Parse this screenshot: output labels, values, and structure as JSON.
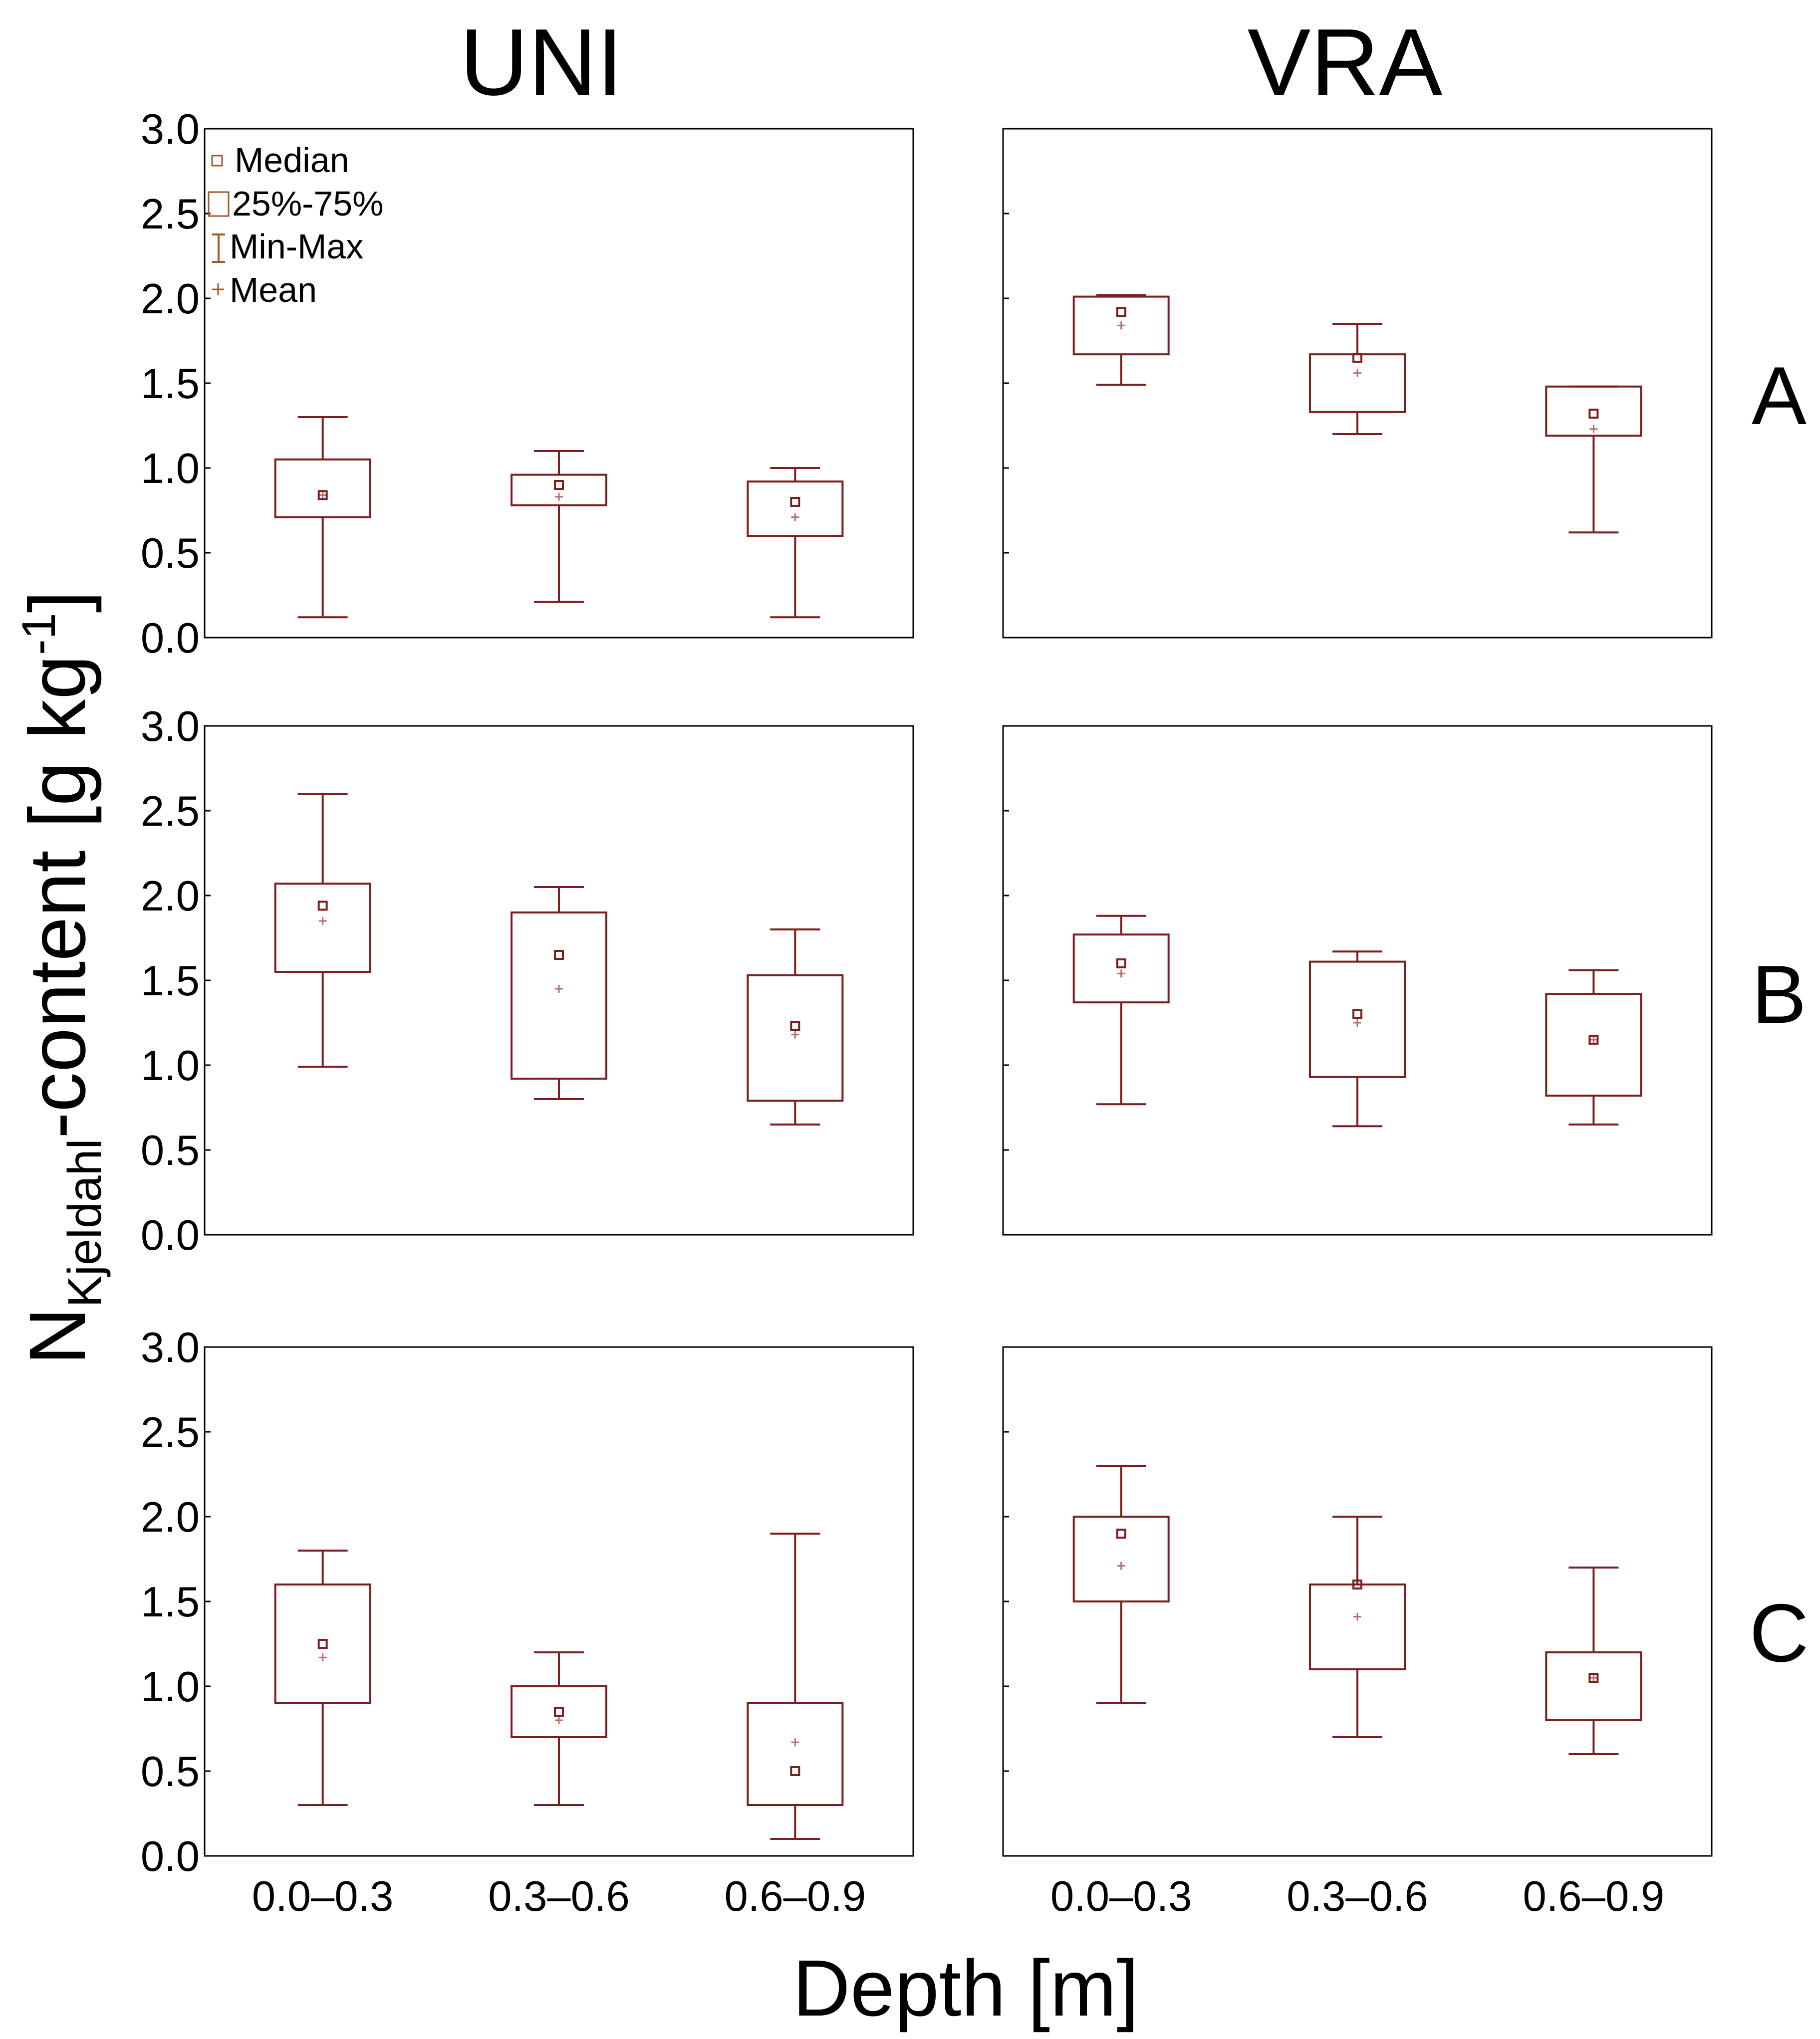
{
  "chart_data": {
    "type": "box",
    "column_titles": [
      "UNI",
      "VRA"
    ],
    "row_labels": [
      "A",
      "B",
      "C"
    ],
    "ylabel_main": "N",
    "ylabel_sub": "Kjeldahl",
    "ylabel_rest": "-content [g kg",
    "ylabel_sup": "-1",
    "ylabel_close": "]",
    "xlabel": "Depth [m]",
    "categories": [
      "0.0–0.3",
      "0.3–0.6",
      "0.6–0.9"
    ],
    "ylim": [
      0.0,
      3.0
    ],
    "yticks": [
      "0.0",
      "0.5",
      "1.0",
      "1.5",
      "2.0",
      "2.5",
      "3.0"
    ],
    "legend": [
      {
        "symbol": "median",
        "label": "Median"
      },
      {
        "symbol": "box",
        "label": "25%-75%"
      },
      {
        "symbol": "whisker",
        "label": "Min-Max"
      },
      {
        "symbol": "mean",
        "label": "Mean"
      }
    ],
    "colors": {
      "box": "#7b2020",
      "mean": "#b07070",
      "frame": "#000000"
    },
    "panels": [
      {
        "row": "A",
        "col": "UNI",
        "boxes": [
          {
            "min": 0.12,
            "q1": 0.71,
            "median": 0.84,
            "mean": 0.84,
            "q3": 1.05,
            "max": 1.3
          },
          {
            "min": 0.21,
            "q1": 0.78,
            "median": 0.9,
            "mean": 0.83,
            "q3": 0.96,
            "max": 1.1
          },
          {
            "min": 0.12,
            "q1": 0.6,
            "median": 0.8,
            "mean": 0.71,
            "q3": 0.92,
            "max": 1.0
          }
        ]
      },
      {
        "row": "A",
        "col": "VRA",
        "boxes": [
          {
            "min": 1.49,
            "q1": 1.67,
            "median": 1.92,
            "mean": 1.84,
            "q3": 2.01,
            "max": 2.02
          },
          {
            "min": 1.2,
            "q1": 1.33,
            "median": 1.65,
            "mean": 1.56,
            "q3": 1.67,
            "max": 1.85
          },
          {
            "min": 0.62,
            "q1": 1.19,
            "median": 1.32,
            "mean": 1.23,
            "q3": 1.48,
            "max": 1.48
          }
        ]
      },
      {
        "row": "B",
        "col": "UNI",
        "boxes": [
          {
            "min": 0.99,
            "q1": 1.55,
            "median": 1.94,
            "mean": 1.85,
            "q3": 2.07,
            "max": 2.6
          },
          {
            "min": 0.8,
            "q1": 0.92,
            "median": 1.65,
            "mean": 1.45,
            "q3": 1.9,
            "max": 2.05
          },
          {
            "min": 0.65,
            "q1": 0.79,
            "median": 1.23,
            "mean": 1.18,
            "q3": 1.53,
            "max": 1.8
          }
        ]
      },
      {
        "row": "B",
        "col": "VRA",
        "boxes": [
          {
            "min": 0.77,
            "q1": 1.37,
            "median": 1.6,
            "mean": 1.54,
            "q3": 1.77,
            "max": 1.88
          },
          {
            "min": 0.64,
            "q1": 0.93,
            "median": 1.3,
            "mean": 1.25,
            "q3": 1.61,
            "max": 1.67
          },
          {
            "min": 0.65,
            "q1": 0.82,
            "median": 1.15,
            "mean": 1.15,
            "q3": 1.42,
            "max": 1.56
          }
        ]
      },
      {
        "row": "C",
        "col": "UNI",
        "boxes": [
          {
            "min": 0.3,
            "q1": 0.9,
            "median": 1.25,
            "mean": 1.17,
            "q3": 1.6,
            "max": 1.8
          },
          {
            "min": 0.3,
            "q1": 0.7,
            "median": 0.85,
            "mean": 0.8,
            "q3": 1.0,
            "max": 1.2
          },
          {
            "min": 0.1,
            "q1": 0.3,
            "median": 0.5,
            "mean": 0.67,
            "q3": 0.9,
            "max": 1.9
          }
        ]
      },
      {
        "row": "C",
        "col": "VRA",
        "boxes": [
          {
            "min": 0.9,
            "q1": 1.5,
            "median": 1.9,
            "mean": 1.71,
            "q3": 2.0,
            "max": 2.3
          },
          {
            "min": 0.7,
            "q1": 1.1,
            "median": 1.6,
            "mean": 1.41,
            "q3": 1.6,
            "max": 2.0
          },
          {
            "min": 0.6,
            "q1": 0.8,
            "median": 1.05,
            "mean": 1.05,
            "q3": 1.2,
            "max": 1.7
          }
        ]
      }
    ]
  }
}
